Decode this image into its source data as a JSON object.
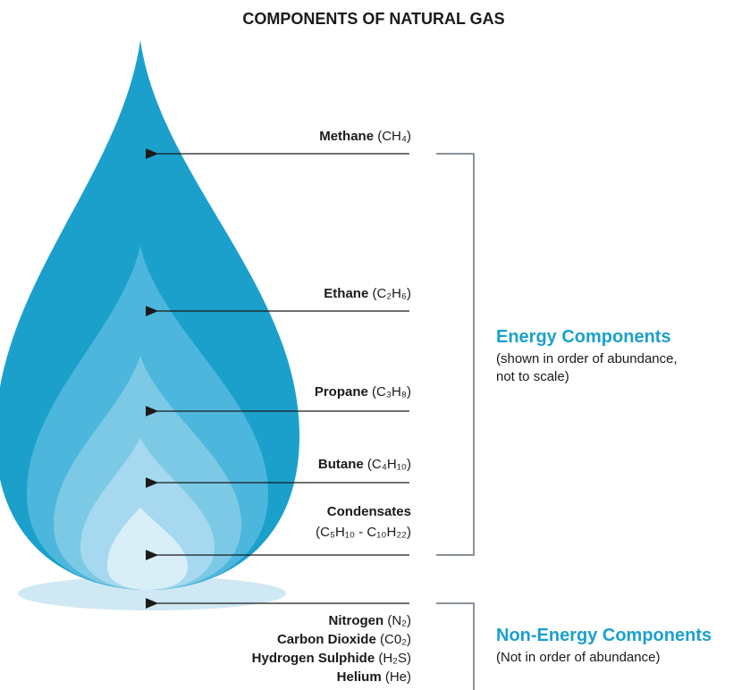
{
  "title": "COMPONENTS OF NATURAL GAS",
  "energy_components": {
    "heading": "Energy Components",
    "note": [
      "(shown in order of abundance,",
      "not to scale)"
    ],
    "items": [
      {
        "name": "Methane",
        "formula": "(CH₄)"
      },
      {
        "name": "Ethane",
        "formula": "(C₂H₆)"
      },
      {
        "name": "Propane",
        "formula": "(C₃H₈)"
      },
      {
        "name": "Butane",
        "formula": "(C₄H₁₀)"
      },
      {
        "name": "Condensates",
        "formula": "(C₅H₁₀ - C₁₀H₂₂)"
      }
    ]
  },
  "non_energy_components": {
    "heading": "Non-Energy Components",
    "note": "(Not in order of abundance)",
    "items": [
      {
        "name": "Nitrogen",
        "formula": "(N₂)"
      },
      {
        "name": "Carbon Dioxide",
        "formula": "(C0₂)"
      },
      {
        "name": "Hydrogen Sulphide",
        "formula": "(H₂S)"
      },
      {
        "name": "Helium",
        "formula": "(He)"
      }
    ]
  }
}
